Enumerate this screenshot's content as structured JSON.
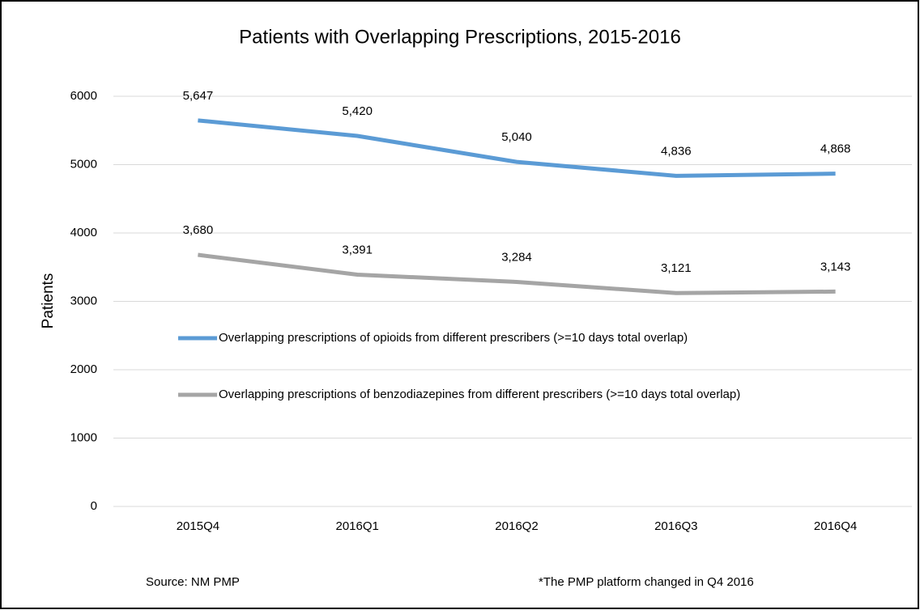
{
  "chart_data": {
    "type": "line",
    "title": "Patients with Overlapping Prescriptions, 2015-2016",
    "ylabel": "Patients",
    "categories": [
      "2015Q4",
      "2016Q1",
      "2016Q2",
      "2016Q3",
      "2016Q4"
    ],
    "series": [
      {
        "name": "Overlapping prescriptions of opioids from different prescribers (>=10 days total overlap)",
        "color": "#5b9bd5",
        "values": [
          5647,
          5420,
          5040,
          4836,
          4868
        ],
        "value_labels": [
          "5,647",
          "5,420",
          "5,040",
          "4,836",
          "4,868"
        ]
      },
      {
        "name": "Overlapping prescriptions of benzodiazepines from different prescribers (>=10 days total overlap)",
        "color": "#a5a5a5",
        "values": [
          3680,
          3391,
          3284,
          3121,
          3143
        ],
        "value_labels": [
          "3,680",
          "3,391",
          "3,284",
          "3,121",
          "3,143"
        ]
      }
    ],
    "ylim": [
      0,
      6000
    ],
    "yticks": [
      0,
      1000,
      2000,
      3000,
      4000,
      5000,
      6000
    ],
    "grid": true,
    "legend": "inside",
    "notes": [
      "Source:  NM PMP",
      "*The PMP platform changed in Q4 2016"
    ]
  }
}
